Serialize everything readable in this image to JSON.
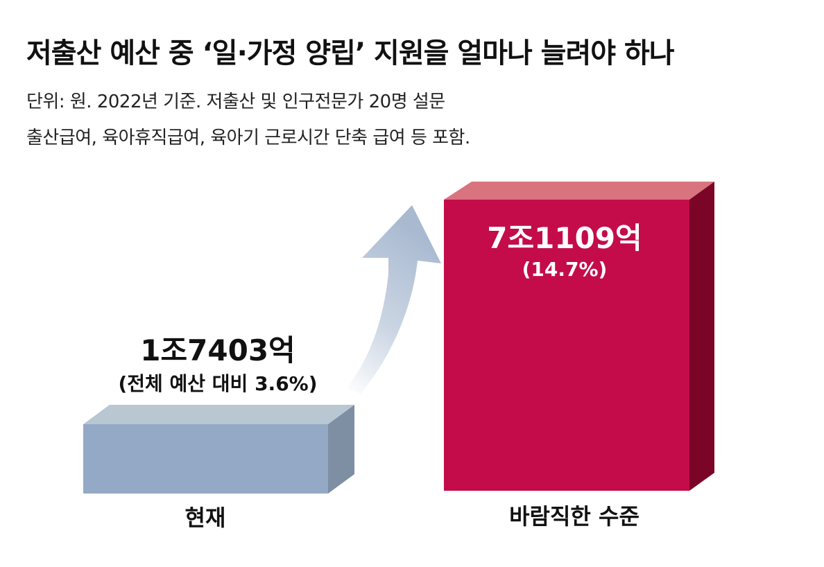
{
  "header": {
    "title": "저출산 예산 중 ‘일·가정 양립’ 지원을 얼마나 늘려야 하나",
    "subtitle_line1": "단위: 원. 2022년 기준. 저출산 및 인구전문가 20명 설문",
    "subtitle_line2": "출산급여, 육아휴직급여, 육아기 근로시간 단축 급여 등 포함."
  },
  "chart_data": {
    "type": "bar",
    "categories": [
      "현재",
      "바람직한 수준"
    ],
    "values": [
      17403,
      71109
    ],
    "unit": "억 원",
    "value_labels": [
      "1조7403억",
      "7조1109억"
    ],
    "share_labels": [
      "(전체 예산 대비 3.6%)",
      "(14.7%)"
    ],
    "shares_percent": [
      3.6,
      14.7
    ],
    "colors": [
      "#93a9c6",
      "#c40c4b"
    ]
  }
}
